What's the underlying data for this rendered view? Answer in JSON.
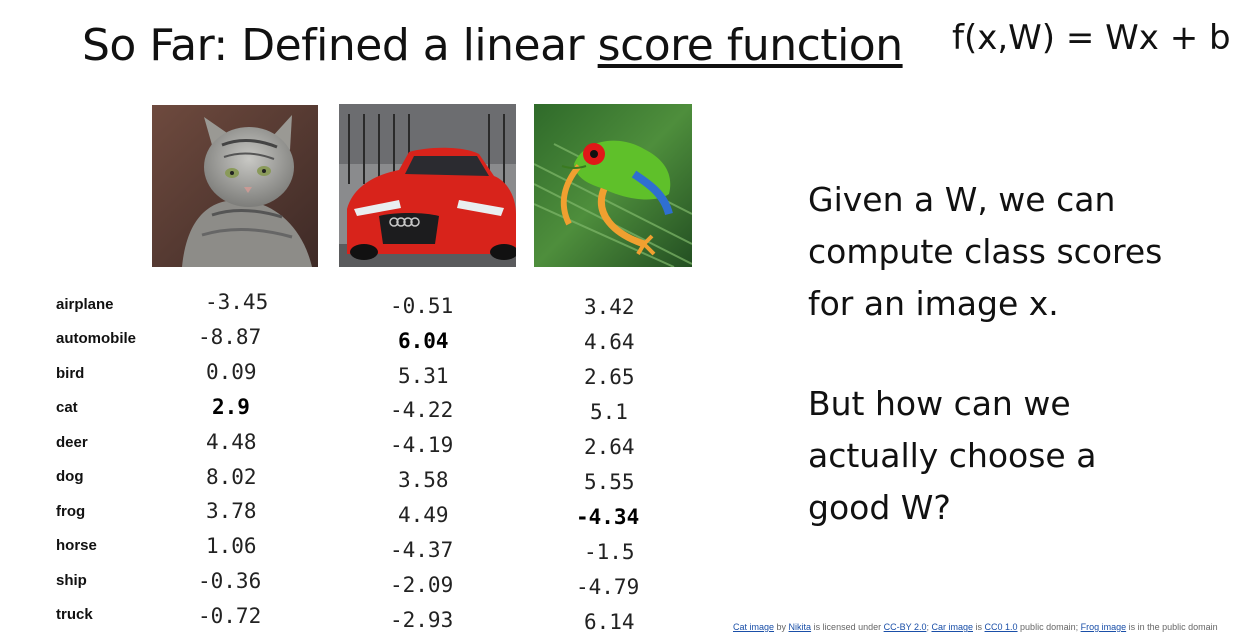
{
  "title": {
    "prefix": "So Far: Defined a linear ",
    "underlined": "score function"
  },
  "formula": "f(x,W) = Wx + b",
  "images": {
    "cat": "cat-photo",
    "car": "car-photo",
    "frog": "frog-photo"
  },
  "classes": [
    "airplane",
    "automobile",
    "bird",
    "cat",
    "deer",
    "dog",
    "frog",
    "horse",
    "ship",
    "truck"
  ],
  "scores": {
    "cat": [
      "-3.45",
      "-8.87",
      "0.09",
      "2.9",
      "4.48",
      "8.02",
      "3.78",
      "1.06",
      "-0.36",
      "-0.72"
    ],
    "car": [
      "-0.51",
      "6.04",
      "5.31",
      "-4.22",
      "-4.19",
      "3.58",
      "4.49",
      "-4.37",
      "-2.09",
      "-2.93"
    ],
    "frog": [
      "3.42",
      "4.64",
      "2.65",
      "5.1",
      "2.64",
      "5.55",
      "-4.34",
      "-1.5",
      "-4.79",
      "6.14"
    ]
  },
  "bold_scores": {
    "cat": 3,
    "car": 1,
    "frog": 6
  },
  "text": {
    "p1": [
      "Given a W, we can",
      "compute class scores",
      "for an image x."
    ],
    "p2": [
      "But how can we",
      "actually choose a",
      "good W?"
    ]
  },
  "credits": {
    "cat_link": "Cat image",
    "by": " by ",
    "nikita": "Nikita",
    "licensed": " is licensed under ",
    "ccby": "CC-BY 2.0",
    "sep1": "; ",
    "car_link": "Car image",
    "is": " is ",
    "cc0": "CC0 1.0",
    "public": " public domain; ",
    "frog_link": "Frog image",
    "tail": " is in the public domain"
  }
}
